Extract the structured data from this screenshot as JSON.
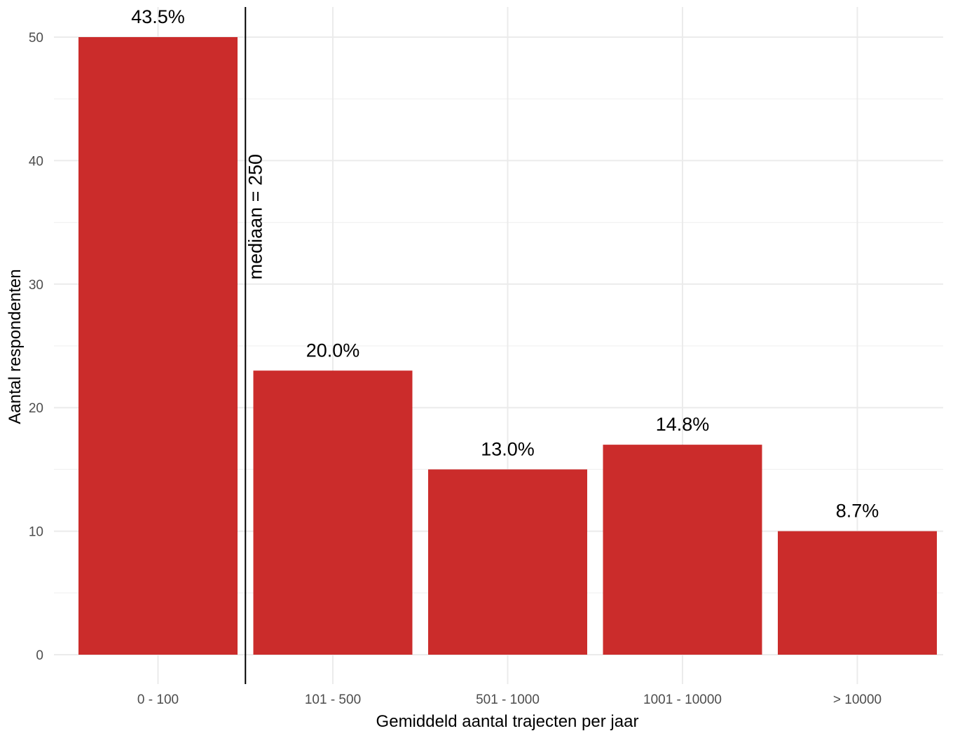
{
  "chart_data": {
    "type": "bar",
    "categories": [
      "0 - 100",
      "101 - 500",
      "501 - 1000",
      "1001 - 10000",
      "> 10000"
    ],
    "values": [
      50,
      23,
      15,
      17,
      10
    ],
    "data_labels": [
      "43.5%",
      "20.0%",
      "13.0%",
      "14.8%",
      "8.7%"
    ],
    "xlabel": "Gemiddeld aantal trajecten per jaar",
    "ylabel": "Aantal respondenten",
    "ylim": [
      0,
      50
    ],
    "yticks": [
      0,
      10,
      20,
      30,
      40,
      50
    ],
    "grid": true,
    "bar_color": "#CB2C2B",
    "median_line": {
      "label": "mediaan = 250",
      "color": "#000000"
    }
  }
}
